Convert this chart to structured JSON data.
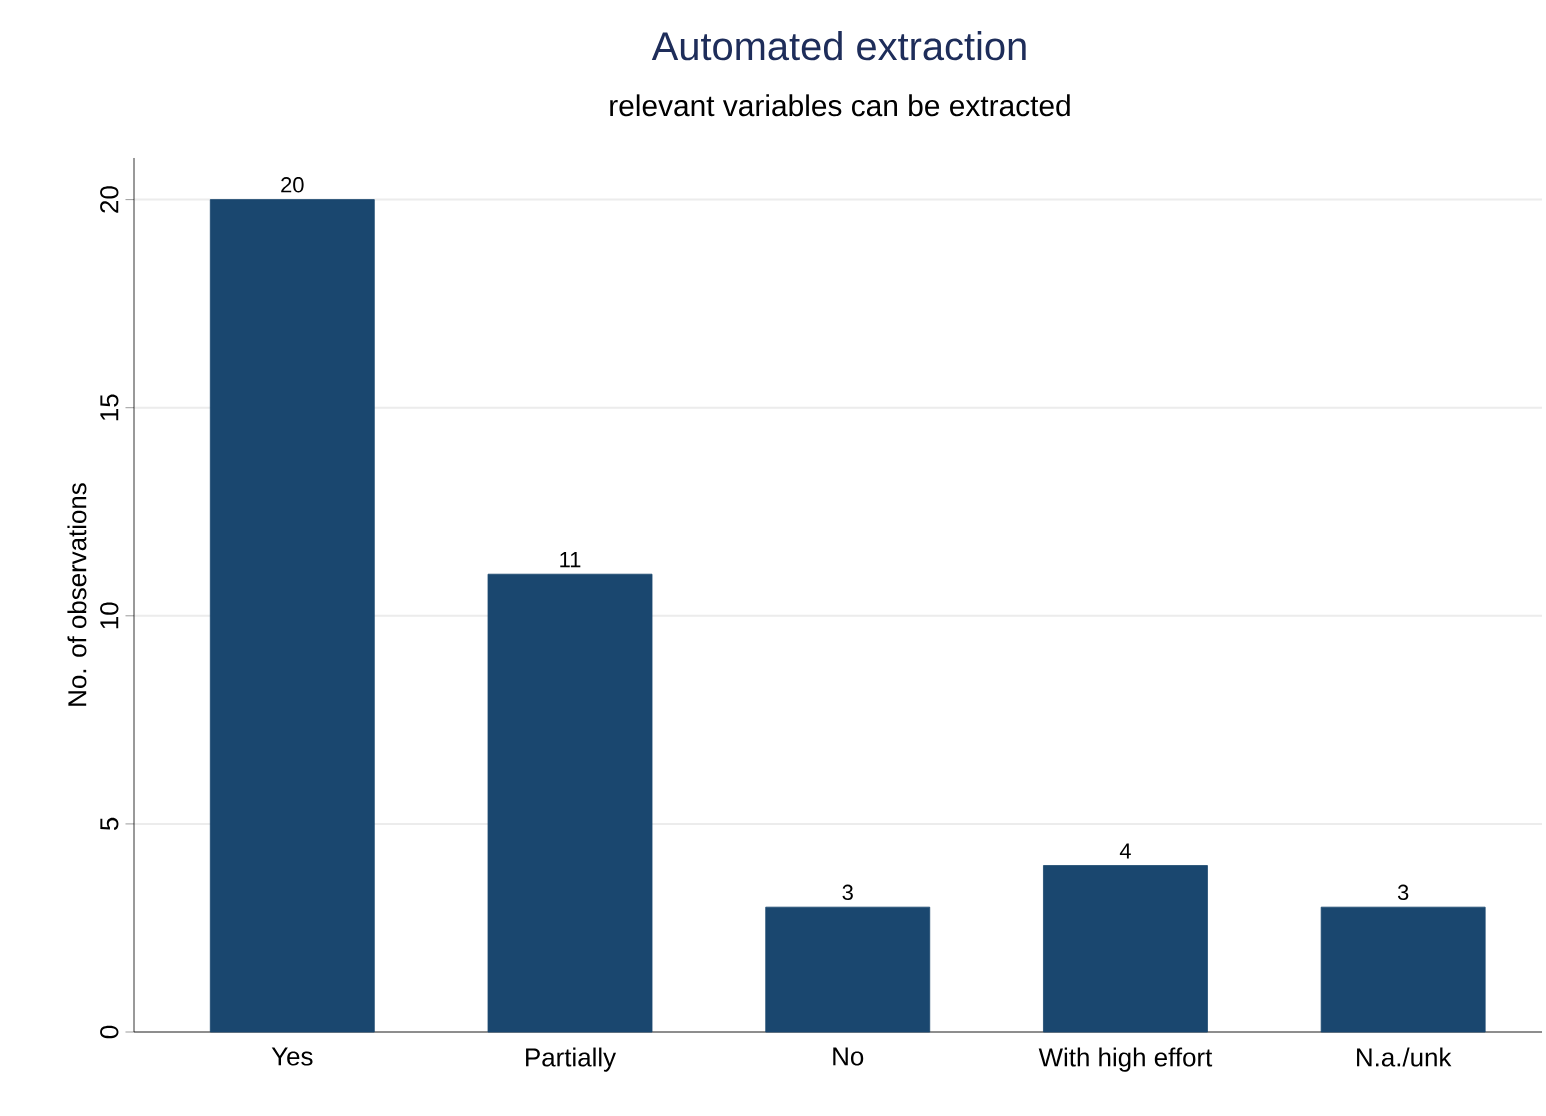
{
  "chart_data": {
    "type": "bar",
    "title": "Automated extraction",
    "subtitle": "relevant variables can be extracted",
    "ylabel": "No. of observations",
    "categories": [
      "Yes",
      "Partially",
      "No",
      "With high effort",
      "N.a./unk"
    ],
    "values": [
      20,
      11,
      3,
      4,
      3
    ],
    "color": "#1a476f",
    "ylim": [
      0,
      21
    ],
    "yticks": [
      0,
      5,
      10,
      15,
      20
    ],
    "grid": "y",
    "data_labels": true
  }
}
